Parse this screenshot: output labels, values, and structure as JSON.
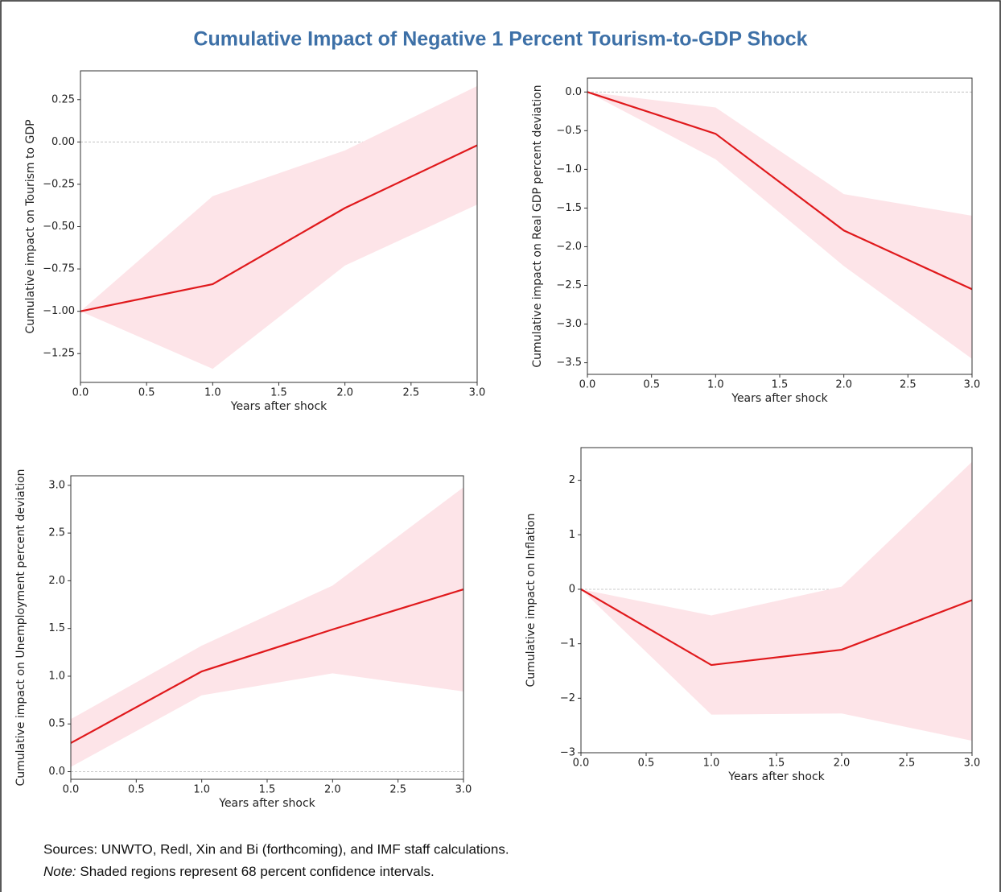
{
  "title": "Cumulative Impact of Negative 1 Percent Tourism-to-GDP Shock",
  "sources": "Sources: UNWTO, Redl, Xin and Bi (forthcoming), and IMF staff calculations.",
  "note_label": "Note:",
  "note": "Shaded regions represent 68 percent confidence intervals.",
  "chart_data": [
    {
      "type": "line",
      "xlabel": "Years after shock",
      "ylabel": "Cumulative impact on Tourism to GDP",
      "x": [
        0,
        1,
        2,
        3
      ],
      "series": [
        {
          "color": "#e0191c",
          "band_color": "#fde4e8",
          "values": [
            -1.0,
            -0.84,
            -0.39,
            -0.02
          ],
          "lower": [
            -1.0,
            -1.34,
            -0.73,
            -0.37
          ],
          "upper": [
            -1.0,
            -0.32,
            -0.05,
            0.33
          ]
        }
      ],
      "xlim": [
        0,
        3
      ],
      "ylim": [
        -1.42,
        0.42
      ],
      "hline": 0,
      "xticks": [
        {
          "value": 0,
          "label": "0.0"
        },
        0.5,
        {
          "value": 1,
          "label": "1.0"
        },
        1.5,
        {
          "value": 2,
          "label": "2.0"
        },
        2.5,
        {
          "value": 3,
          "label": "3.0"
        }
      ],
      "yticks": [
        {
          "value": -1.25,
          "label": "−1.25"
        },
        {
          "value": -1.0,
          "label": "−1.00"
        },
        {
          "value": -0.75,
          "label": "−0.75"
        },
        {
          "value": -0.5,
          "label": "−0.50"
        },
        {
          "value": -0.25,
          "label": "−0.25"
        },
        {
          "value": 0,
          "label": "0.00"
        },
        0.25
      ]
    },
    {
      "type": "line",
      "xlabel": "Years after shock",
      "ylabel": "Cumulative impact on Real GDP percent deviation",
      "x": [
        0,
        1,
        2,
        3
      ],
      "series": [
        {
          "color": "#e0191c",
          "band_color": "#fde4e8",
          "values": [
            0,
            -0.54,
            -1.79,
            -2.55
          ],
          "lower": [
            0,
            -0.87,
            -2.25,
            -3.45
          ],
          "upper": [
            0,
            -0.2,
            -1.32,
            -1.6
          ]
        }
      ],
      "xlim": [
        0,
        3
      ],
      "ylim": [
        -3.65,
        0.18
      ],
      "hline": 0,
      "xticks": [
        {
          "value": 0,
          "label": "0.0"
        },
        0.5,
        {
          "value": 1,
          "label": "1.0"
        },
        1.5,
        {
          "value": 2,
          "label": "2.0"
        },
        2.5,
        {
          "value": 3,
          "label": "3.0"
        }
      ],
      "yticks": [
        {
          "value": -3.5,
          "label": "−3.5"
        },
        {
          "value": -3,
          "label": "−3.0"
        },
        {
          "value": -2.5,
          "label": "−2.5"
        },
        {
          "value": -2,
          "label": "−2.0"
        },
        {
          "value": -1.5,
          "label": "−1.5"
        },
        {
          "value": -1,
          "label": "−1.0"
        },
        {
          "value": -0.5,
          "label": "−0.5"
        },
        {
          "value": 0,
          "label": "0.0"
        }
      ]
    },
    {
      "type": "line",
      "xlabel": "Years after shock",
      "ylabel": "Cumulative impact on Unemployment percent deviation",
      "x": [
        0,
        1,
        2,
        3
      ],
      "series": [
        {
          "color": "#e0191c",
          "band_color": "#fde4e8",
          "values": [
            0.3,
            1.05,
            1.49,
            1.91
          ],
          "lower": [
            0.05,
            0.8,
            1.03,
            0.84
          ],
          "upper": [
            0.55,
            1.32,
            1.95,
            2.98
          ]
        }
      ],
      "xlim": [
        0,
        3
      ],
      "ylim": [
        -0.08,
        3.1
      ],
      "hline": 0,
      "xticks": [
        {
          "value": 0,
          "label": "0.0"
        },
        0.5,
        {
          "value": 1,
          "label": "1.0"
        },
        1.5,
        {
          "value": 2,
          "label": "2.0"
        },
        2.5,
        {
          "value": 3,
          "label": "3.0"
        }
      ],
      "yticks": [
        {
          "value": 0,
          "label": "0.0"
        },
        0.5,
        {
          "value": 1,
          "label": "1.0"
        },
        1.5,
        {
          "value": 2,
          "label": "2.0"
        },
        2.5,
        {
          "value": 3,
          "label": "3.0"
        }
      ]
    },
    {
      "type": "line",
      "xlabel": "Years after shock",
      "ylabel": "Cumulative impact on Inflation",
      "x": [
        0,
        1,
        2,
        3
      ],
      "series": [
        {
          "color": "#e0191c",
          "band_color": "#fde4e8",
          "values": [
            0,
            -1.39,
            -1.11,
            -0.2
          ],
          "lower": [
            0,
            -2.3,
            -2.28,
            -2.78
          ],
          "upper": [
            0,
            -0.48,
            0.05,
            2.34
          ]
        }
      ],
      "xlim": [
        0,
        3
      ],
      "ylim": [
        -3,
        2.6
      ],
      "hline": 0,
      "xticks": [
        {
          "value": 0,
          "label": "0.0"
        },
        0.5,
        {
          "value": 1,
          "label": "1.0"
        },
        1.5,
        {
          "value": 2,
          "label": "2.0"
        },
        2.5,
        {
          "value": 3,
          "label": "3.0"
        }
      ],
      "yticks": [
        {
          "value": -3,
          "label": "−3"
        },
        {
          "value": -2,
          "label": "−2"
        },
        {
          "value": -1,
          "label": "−1"
        },
        0,
        1,
        2
      ]
    }
  ]
}
